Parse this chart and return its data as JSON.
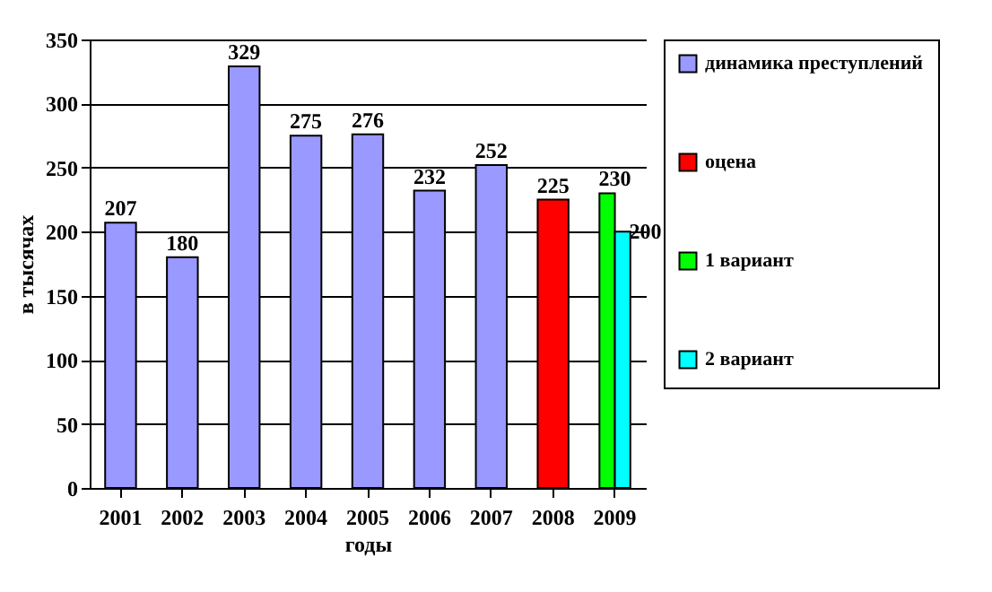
{
  "chart_data": {
    "type": "bar",
    "xlabel": "годы",
    "ylabel": "в тысячах",
    "categories": [
      "2001",
      "2002",
      "2003",
      "2004",
      "2005",
      "2006",
      "2007",
      "2008",
      "2009"
    ],
    "series": [
      {
        "name": "динамика преступлений",
        "color": "#9999ff",
        "values": [
          207,
          180,
          329,
          275,
          276,
          232,
          252,
          null,
          null
        ]
      },
      {
        "name": "оцена",
        "color": "#ff0000",
        "values": [
          null,
          null,
          null,
          null,
          null,
          null,
          null,
          225,
          null
        ]
      },
      {
        "name": "1 вариант",
        "color": "#00ff00",
        "values": [
          null,
          null,
          null,
          null,
          null,
          null,
          null,
          null,
          230
        ]
      },
      {
        "name": "2 вариант",
        "color": "#00ffff",
        "values": [
          null,
          null,
          null,
          null,
          null,
          null,
          null,
          null,
          200
        ]
      }
    ],
    "ylim": [
      0,
      350
    ],
    "yticks": [
      0,
      50,
      100,
      150,
      200,
      250,
      300,
      350
    ],
    "grid": "y",
    "legend": "right",
    "data_labels": true
  }
}
